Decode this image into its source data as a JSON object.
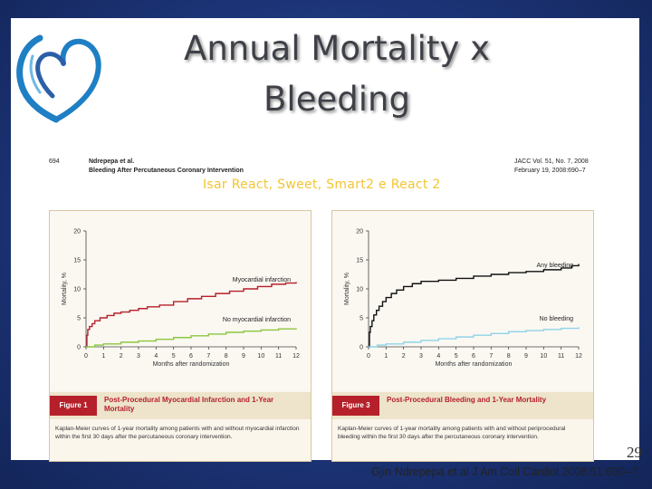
{
  "slide": {
    "title": "Annual Mortality x Bleeding",
    "subtitle": "Isar React, Sweet, Smart2 e React 2",
    "page_number": "29",
    "citation": "Gjin Ndrepepa et al J Am Coll Cardiol 2008;51:690–7"
  },
  "journal_header": {
    "page": "694",
    "authors": "Ndrepepa et al.",
    "running_title": "Bleeding After Percutaneous Coronary Intervention",
    "volume": "JACC Vol. 51, No. 7, 2008",
    "date_pages": "February 19, 2008:690–7"
  },
  "colors": {
    "red_curve": "#b5202a",
    "green_curve": "#8cc63f",
    "black_curve": "#111111",
    "blue_curve": "#8fd3e8",
    "figure_badge": "#b5202a",
    "subtitle": "#f2c531"
  },
  "chart_data": [
    {
      "type": "line",
      "figure_label": "Figure 1",
      "caption_title": "Post-Procedural Myocardial Infarction and 1-Year Mortality",
      "caption": "Kaplan-Meier curves of 1-year mortality among patients with and without myocardial infarction within the first 30 days after the percutaneous coronary intervention.",
      "xlabel": "Months after randomization",
      "ylabel": "Mortality, %",
      "xlim": [
        0,
        12
      ],
      "ylim": [
        0,
        20
      ],
      "xticks": [
        0,
        1,
        2,
        3,
        4,
        5,
        6,
        7,
        8,
        9,
        10,
        11,
        12
      ],
      "yticks": [
        0,
        5,
        10,
        15,
        20
      ],
      "series": [
        {
          "name": "Myocardial infarction",
          "color_key": "red_curve",
          "x": [
            0,
            0.05,
            0.1,
            0.2,
            0.35,
            0.5,
            0.8,
            1.2,
            1.6,
            2.0,
            2.5,
            3.0,
            3.5,
            4.2,
            5.0,
            5.8,
            6.6,
            7.4,
            8.2,
            9.0,
            9.8,
            10.6,
            11.4,
            12
          ],
          "y": [
            0,
            2.0,
            3.0,
            3.5,
            4.0,
            4.5,
            5.0,
            5.4,
            5.8,
            6.0,
            6.3,
            6.6,
            6.9,
            7.2,
            7.8,
            8.3,
            8.7,
            9.2,
            9.6,
            10.0,
            10.4,
            10.8,
            11.0,
            11.2
          ]
        },
        {
          "name": "No myocardial infarction",
          "color_key": "green_curve",
          "x": [
            0,
            0.5,
            1,
            2,
            3,
            4,
            5,
            6,
            7,
            8,
            9,
            10,
            11,
            12
          ],
          "y": [
            0,
            0.3,
            0.5,
            0.8,
            1.0,
            1.3,
            1.6,
            1.9,
            2.2,
            2.5,
            2.7,
            2.9,
            3.1,
            3.2
          ]
        }
      ]
    },
    {
      "type": "line",
      "figure_label": "Figure 3",
      "caption_title": "Post-Procedural Bleeding and 1-Year Mortality",
      "caption": "Kaplan-Meier curves of 1-year mortality among patients with and without periprocedural bleeding within the first 30 days after the percutaneous coronary intervention.",
      "xlabel": "Months after randomization",
      "ylabel": "Mortality, %",
      "xlim": [
        0,
        12
      ],
      "ylim": [
        0,
        20
      ],
      "xticks": [
        0,
        1,
        2,
        3,
        4,
        5,
        6,
        7,
        8,
        9,
        10,
        11,
        12
      ],
      "yticks": [
        0,
        5,
        10,
        15,
        20
      ],
      "series": [
        {
          "name": "Any bleeding",
          "color_key": "black_curve",
          "x": [
            0,
            0.05,
            0.1,
            0.2,
            0.3,
            0.45,
            0.6,
            0.8,
            1.0,
            1.3,
            1.6,
            2.0,
            2.5,
            3.0,
            4.0,
            5.0,
            6.0,
            7.0,
            8.0,
            9.0,
            10.0,
            11.0,
            11.6,
            12
          ],
          "y": [
            0,
            2.5,
            3.5,
            4.5,
            5.5,
            6.3,
            7.0,
            7.8,
            8.5,
            9.2,
            9.8,
            10.4,
            10.9,
            11.3,
            11.5,
            11.8,
            12.2,
            12.5,
            12.8,
            13.0,
            13.3,
            13.6,
            14.0,
            14.3
          ]
        },
        {
          "name": "No bleeding",
          "color_key": "blue_curve",
          "x": [
            0,
            0.5,
            1,
            2,
            3,
            4,
            5,
            6,
            7,
            8,
            9,
            10,
            11,
            12
          ],
          "y": [
            0,
            0.3,
            0.5,
            0.8,
            1.1,
            1.4,
            1.7,
            2.0,
            2.3,
            2.6,
            2.8,
            3.0,
            3.2,
            3.4
          ]
        }
      ]
    }
  ]
}
